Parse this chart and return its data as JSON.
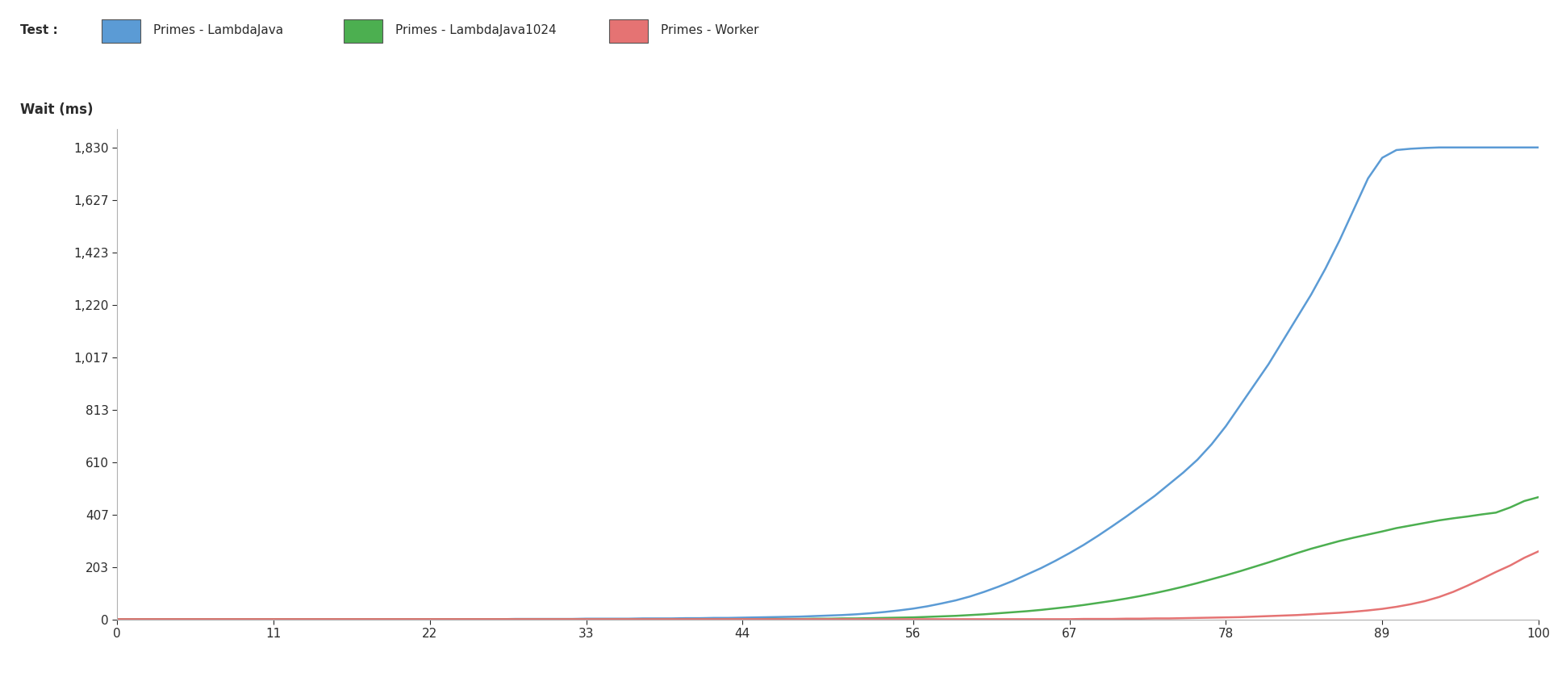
{
  "ylabel": "Wait (ms)",
  "test_label": "Test :",
  "legend_labels": [
    "Primes - LambdaJava",
    "Primes - LambdaJava1024",
    "Primes - Worker"
  ],
  "line_colors": [
    "#5b9bd5",
    "#4caf50",
    "#e57373"
  ],
  "legend_box_colors": [
    "#5b9bd5",
    "#4caf50",
    "#e57373"
  ],
  "background_color": "#ffffff",
  "xlim": [
    0,
    100
  ],
  "ylim": [
    0,
    1900
  ],
  "yticks": [
    0,
    203,
    407,
    610,
    813,
    1017,
    1220,
    1423,
    1627,
    1830
  ],
  "xticks": [
    0,
    11,
    22,
    33,
    44,
    56,
    67,
    78,
    89,
    100
  ],
  "blue_x": [
    0,
    1,
    2,
    3,
    4,
    5,
    6,
    7,
    8,
    9,
    10,
    11,
    12,
    13,
    14,
    15,
    16,
    17,
    18,
    19,
    20,
    21,
    22,
    23,
    24,
    25,
    26,
    27,
    28,
    29,
    30,
    31,
    32,
    33,
    34,
    35,
    36,
    37,
    38,
    39,
    40,
    41,
    42,
    43,
    44,
    45,
    46,
    47,
    48,
    49,
    50,
    51,
    52,
    53,
    54,
    55,
    56,
    57,
    58,
    59,
    60,
    61,
    62,
    63,
    64,
    65,
    66,
    67,
    68,
    69,
    70,
    71,
    72,
    73,
    74,
    75,
    76,
    77,
    78,
    79,
    80,
    81,
    82,
    83,
    84,
    85,
    86,
    87,
    88,
    89,
    90,
    91,
    92,
    93,
    94,
    95,
    96,
    97,
    98,
    99,
    100
  ],
  "blue_y": [
    2,
    2,
    2,
    2,
    2,
    2,
    2,
    2,
    2,
    2,
    2,
    2,
    2,
    2,
    2,
    2,
    2,
    2,
    2,
    2,
    2,
    2,
    2,
    2,
    2,
    2,
    2,
    2,
    3,
    3,
    3,
    3,
    3,
    4,
    4,
    4,
    4,
    5,
    5,
    5,
    6,
    6,
    7,
    7,
    8,
    9,
    10,
    11,
    12,
    14,
    16,
    18,
    21,
    25,
    30,
    36,
    43,
    52,
    63,
    75,
    90,
    108,
    128,
    150,
    175,
    200,
    228,
    258,
    290,
    325,
    362,
    400,
    440,
    480,
    525,
    570,
    620,
    680,
    750,
    830,
    910,
    990,
    1080,
    1170,
    1260,
    1360,
    1470,
    1590,
    1710,
    1790,
    1820,
    1825,
    1828,
    1830,
    1830,
    1830,
    1830,
    1830,
    1830,
    1830,
    1830
  ],
  "green_x": [
    0,
    1,
    2,
    3,
    4,
    5,
    6,
    7,
    8,
    9,
    10,
    11,
    12,
    13,
    14,
    15,
    16,
    17,
    18,
    19,
    20,
    21,
    22,
    23,
    24,
    25,
    26,
    27,
    28,
    29,
    30,
    31,
    32,
    33,
    34,
    35,
    36,
    37,
    38,
    39,
    40,
    41,
    42,
    43,
    44,
    45,
    46,
    47,
    48,
    49,
    50,
    51,
    52,
    53,
    54,
    55,
    56,
    57,
    58,
    59,
    60,
    61,
    62,
    63,
    64,
    65,
    66,
    67,
    68,
    69,
    70,
    71,
    72,
    73,
    74,
    75,
    76,
    77,
    78,
    79,
    80,
    81,
    82,
    83,
    84,
    85,
    86,
    87,
    88,
    89,
    90,
    91,
    92,
    93,
    94,
    95,
    96,
    97,
    98,
    99,
    100
  ],
  "green_y": [
    2,
    2,
    2,
    2,
    2,
    2,
    2,
    2,
    2,
    2,
    2,
    2,
    2,
    2,
    2,
    2,
    2,
    2,
    2,
    2,
    2,
    2,
    2,
    2,
    2,
    2,
    2,
    2,
    2,
    2,
    2,
    2,
    2,
    2,
    2,
    2,
    2,
    2,
    2,
    2,
    2,
    2,
    2,
    2,
    2,
    2,
    3,
    3,
    3,
    4,
    4,
    5,
    5,
    6,
    7,
    8,
    9,
    11,
    13,
    15,
    18,
    21,
    25,
    29,
    33,
    38,
    44,
    50,
    57,
    65,
    73,
    82,
    92,
    103,
    115,
    128,
    142,
    157,
    172,
    188,
    205,
    222,
    240,
    258,
    275,
    290,
    305,
    318,
    330,
    342,
    355,
    365,
    375,
    385,
    393,
    400,
    408,
    415,
    435,
    460,
    475
  ],
  "red_x": [
    0,
    1,
    2,
    3,
    4,
    5,
    6,
    7,
    8,
    9,
    10,
    11,
    12,
    13,
    14,
    15,
    16,
    17,
    18,
    19,
    20,
    21,
    22,
    23,
    24,
    25,
    26,
    27,
    28,
    29,
    30,
    31,
    32,
    33,
    34,
    35,
    36,
    37,
    38,
    39,
    40,
    41,
    42,
    43,
    44,
    45,
    46,
    47,
    48,
    49,
    50,
    51,
    52,
    53,
    54,
    55,
    56,
    57,
    58,
    59,
    60,
    61,
    62,
    63,
    64,
    65,
    66,
    67,
    68,
    69,
    70,
    71,
    72,
    73,
    74,
    75,
    76,
    77,
    78,
    79,
    80,
    81,
    82,
    83,
    84,
    85,
    86,
    87,
    88,
    89,
    90,
    91,
    92,
    93,
    94,
    95,
    96,
    97,
    98,
    99,
    100
  ],
  "red_y": [
    2,
    2,
    2,
    2,
    2,
    2,
    2,
    2,
    2,
    2,
    2,
    2,
    2,
    2,
    2,
    2,
    2,
    2,
    2,
    2,
    2,
    2,
    2,
    2,
    2,
    2,
    2,
    2,
    2,
    2,
    2,
    2,
    2,
    2,
    2,
    2,
    2,
    2,
    2,
    2,
    2,
    2,
    2,
    2,
    2,
    2,
    2,
    2,
    2,
    2,
    2,
    2,
    2,
    2,
    2,
    2,
    2,
    2,
    2,
    2,
    2,
    2,
    2,
    2,
    2,
    2,
    2,
    2,
    3,
    3,
    3,
    4,
    4,
    5,
    5,
    6,
    7,
    8,
    9,
    10,
    12,
    14,
    16,
    18,
    21,
    24,
    27,
    31,
    36,
    42,
    50,
    60,
    72,
    88,
    108,
    132,
    158,
    185,
    210,
    240,
    265
  ]
}
